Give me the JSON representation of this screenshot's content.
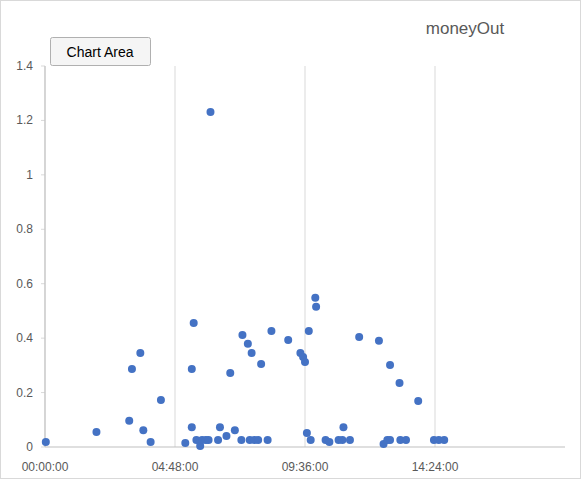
{
  "chart_data": {
    "type": "scatter",
    "title": "moneyOut",
    "annotation": "Chart Area",
    "x": [
      0.03,
      1.9,
      3.11,
      3.21,
      3.52,
      3.63,
      3.9,
      4.28,
      5.18,
      5.42,
      5.42,
      5.49,
      5.59,
      5.73,
      5.8,
      5.94,
      6.04,
      6.11,
      6.39,
      6.46,
      6.7,
      6.84,
      7.01,
      7.25,
      7.29,
      7.49,
      7.63,
      7.56,
      7.73,
      7.87,
      7.98,
      8.22,
      8.36,
      8.98,
      9.43,
      9.53,
      9.6,
      9.67,
      9.74,
      9.81,
      9.98,
      10.01,
      10.36,
      10.5,
      10.84,
      10.98,
      11.02,
      11.26,
      11.6,
      12.33,
      12.5,
      12.64,
      12.74,
      12.74,
      13.09,
      13.12,
      13.33,
      13.78,
      14.36,
      14.54,
      14.74
    ],
    "values": [
      0.018,
      0.055,
      0.096,
      0.287,
      0.345,
      0.062,
      0.018,
      0.173,
      0.015,
      0.073,
      0.287,
      0.456,
      0.026,
      0.004,
      0.026,
      0.026,
      0.026,
      1.231,
      0.026,
      0.073,
      0.04,
      0.272,
      0.062,
      0.026,
      0.412,
      0.379,
      0.345,
      0.026,
      0.026,
      0.026,
      0.305,
      0.026,
      0.426,
      0.393,
      0.345,
      0.331,
      0.312,
      0.051,
      0.426,
      0.026,
      0.548,
      0.515,
      0.026,
      0.018,
      0.026,
      0.026,
      0.073,
      0.026,
      0.404,
      0.39,
      0.011,
      0.026,
      0.026,
      0.301,
      0.235,
      0.026,
      0.026,
      0.169,
      0.026,
      0.026,
      0.026
    ],
    "color": "#4472c4",
    "marker": "circle",
    "xlim": [
      0,
      19.2
    ],
    "xticks": [
      {
        "value": 0,
        "label": "00:00:00"
      },
      {
        "value": 4.8,
        "label": "04:48:00"
      },
      {
        "value": 9.6,
        "label": "09:36:00"
      },
      {
        "value": 14.4,
        "label": "14:24:00"
      }
    ],
    "ylim": [
      0,
      1.4
    ],
    "yticks": [
      0,
      0.2,
      0.4,
      0.6,
      0.8,
      1,
      1.2,
      1.4
    ],
    "grid": "x"
  }
}
